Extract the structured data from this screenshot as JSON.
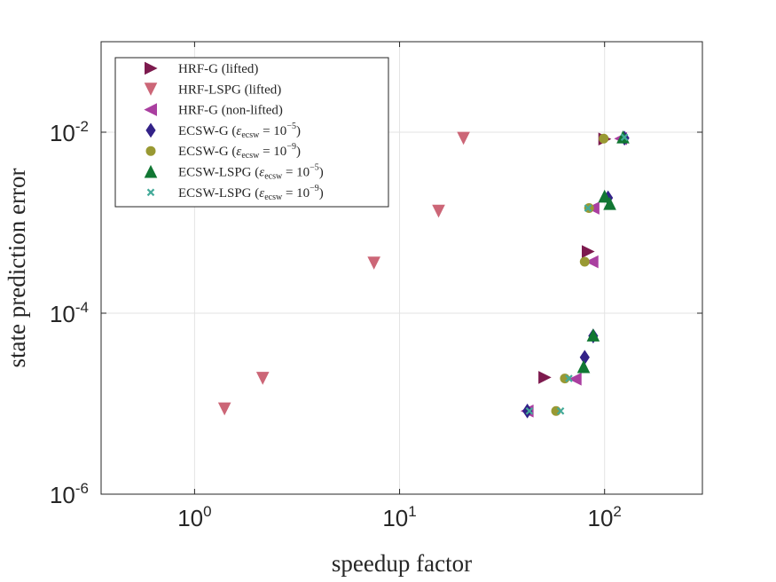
{
  "chart_data": {
    "type": "scatter",
    "xscale": "log",
    "yscale": "log",
    "xlim": [
      0.35,
      300
    ],
    "ylim": [
      1e-06,
      0.1
    ],
    "xlabel": "speedup factor",
    "ylabel": "state prediction error",
    "grid": true,
    "legend_position": "top-left",
    "x_ticks": [
      {
        "base": "10",
        "exp": "0",
        "value": 1
      },
      {
        "base": "10",
        "exp": "1",
        "value": 10
      },
      {
        "base": "10",
        "exp": "2",
        "value": 100
      }
    ],
    "y_ticks": [
      {
        "base": "10",
        "exp": "-6",
        "value": 1e-06
      },
      {
        "base": "10",
        "exp": "-4",
        "value": 0.0001
      },
      {
        "base": "10",
        "exp": "-2",
        "value": 0.01
      }
    ],
    "series": [
      {
        "name": "HRF-G (lifted)",
        "legend_main": "HRF-G (lifted)",
        "legend_sub": "",
        "legend_mid": "",
        "legend_sup": "",
        "legend_end": "",
        "marker": "triangle-right",
        "color": "#7d1a4e",
        "x": [
          51,
          83,
          100
        ],
        "y": [
          1.95e-05,
          0.00048,
          0.0084
        ]
      },
      {
        "name": "HRF-LSPG (lifted)",
        "legend_main": "HRF-LSPG (lifted)",
        "legend_sub": "",
        "legend_mid": "",
        "legend_sup": "",
        "legend_end": "",
        "marker": "triangle-down",
        "color": "#cc6677",
        "x": [
          1.4,
          2.15,
          7.5,
          15.5,
          20.5
        ],
        "y": [
          8.8e-06,
          1.92e-05,
          0.00036,
          0.00135,
          0.0086
        ]
      },
      {
        "name": "HRF-G (non-lifted)",
        "legend_main": "HRF-G (non-lifted)",
        "legend_sub": "",
        "legend_mid": "",
        "legend_sup": "",
        "legend_end": "",
        "marker": "triangle-left",
        "color": "#aa3fa0",
        "x": [
          42,
          72,
          87,
          88,
          120
        ],
        "y": [
          8.3e-06,
          1.87e-05,
          0.00037,
          0.00145,
          0.0085
        ]
      },
      {
        "name": "ECSW-G (ε_ecsw = 10^-5)",
        "legend_main": "ECSW-G (",
        "legend_sub": "ecsw",
        "legend_mid": " = 10",
        "legend_sup": "−5",
        "legend_end": ")",
        "marker": "diamond",
        "color": "#332288",
        "x": [
          42,
          80,
          88,
          104,
          125
        ],
        "y": [
          8.3e-06,
          3.25e-05,
          5.6e-05,
          0.00188,
          0.0086
        ]
      },
      {
        "name": "ECSW-G (ε_ecsw = 10^-9)",
        "legend_main": "ECSW-G (",
        "legend_sub": "ecsw",
        "legend_mid": " = 10",
        "legend_sup": "−9",
        "legend_end": ")",
        "marker": "circle",
        "color": "#999933",
        "x": [
          58,
          64,
          80,
          84,
          99
        ],
        "y": [
          8.3e-06,
          1.9e-05,
          0.00037,
          0.00145,
          0.0085
        ]
      },
      {
        "name": "ECSW-LSPG (ε_ecsw = 10^-5)",
        "legend_main": "ECSW-LSPG (",
        "legend_sub": "ecsw",
        "legend_mid": " = 10",
        "legend_sup": "−5",
        "legend_end": ")",
        "marker": "triangle-up",
        "color": "#117733",
        "x": [
          79,
          88,
          100,
          106,
          123
        ],
        "y": [
          2.55e-05,
          5.7e-05,
          0.00195,
          0.00162,
          0.0088
        ]
      },
      {
        "name": "ECSW-LSPG (ε_ecsw = 10^-9)",
        "legend_main": "ECSW-LSPG (",
        "legend_sub": "ecsw",
        "legend_mid": " = 10",
        "legend_sup": "−9",
        "legend_end": ")",
        "marker": "x",
        "color": "#44aa99",
        "x": [
          43,
          61,
          67,
          83,
          125
        ],
        "y": [
          8.3e-06,
          8.3e-06,
          1.9e-05,
          0.00145,
          0.0088
        ]
      }
    ]
  }
}
